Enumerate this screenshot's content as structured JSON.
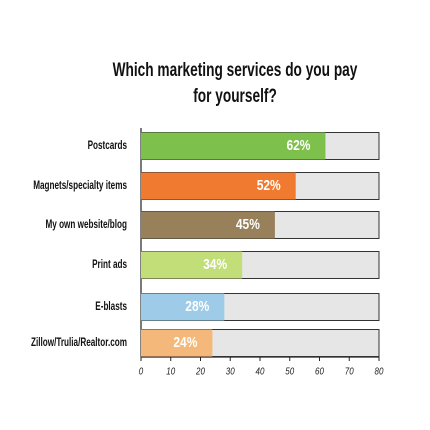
{
  "chart_data": {
    "type": "bar",
    "orientation": "horizontal",
    "title": "Which marketing services do you pay for yourself?",
    "categories": [
      "Postcards",
      "Magnets/specialty items",
      "My own website/blog",
      "Print ads",
      "E-blasts",
      "Zillow/Trulia/Realtor.com"
    ],
    "values": [
      62,
      52,
      45,
      34,
      28,
      24
    ],
    "value_labels": [
      "62%",
      "52%",
      "45%",
      "34%",
      "28%",
      "24%"
    ],
    "colors": [
      "#7dc04b",
      "#f07a2f",
      "#97805a",
      "#c2de78",
      "#9dcbe8",
      "#f4b97a"
    ],
    "xlim": [
      0,
      80
    ],
    "xticks": [
      0,
      10,
      20,
      30,
      40,
      50,
      60,
      70,
      80
    ]
  }
}
